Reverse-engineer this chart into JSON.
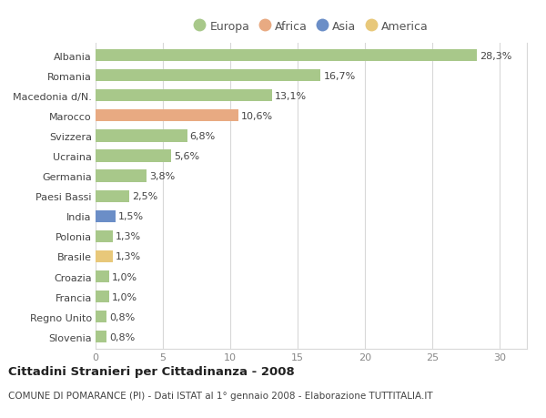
{
  "categories": [
    "Albania",
    "Romania",
    "Macedonia d/N.",
    "Marocco",
    "Svizzera",
    "Ucraina",
    "Germania",
    "Paesi Bassi",
    "India",
    "Polonia",
    "Brasile",
    "Croazia",
    "Francia",
    "Regno Unito",
    "Slovenia"
  ],
  "values": [
    28.3,
    16.7,
    13.1,
    10.6,
    6.8,
    5.6,
    3.8,
    2.5,
    1.5,
    1.3,
    1.3,
    1.0,
    1.0,
    0.8,
    0.8
  ],
  "continents": [
    "Europa",
    "Europa",
    "Europa",
    "Africa",
    "Europa",
    "Europa",
    "Europa",
    "Europa",
    "Asia",
    "Europa",
    "America",
    "Europa",
    "Europa",
    "Europa",
    "Europa"
  ],
  "colors": {
    "Europa": "#a8c88a",
    "Africa": "#e8aa82",
    "Asia": "#6b8ec7",
    "America": "#e8c87a"
  },
  "legend_order": [
    "Europa",
    "Africa",
    "Asia",
    "America"
  ],
  "title": "Cittadini Stranieri per Cittadinanza - 2008",
  "subtitle": "COMUNE DI POMARANCE (PI) - Dati ISTAT al 1° gennaio 2008 - Elaborazione TUTTITALIA.IT",
  "xlim": [
    0,
    32
  ],
  "xticks": [
    0,
    5,
    10,
    15,
    20,
    25,
    30
  ],
  "background_color": "#ffffff",
  "grid_color": "#d8d8d8",
  "bar_height": 0.6,
  "label_fontsize": 8,
  "tick_fontsize": 8,
  "title_fontsize": 9.5,
  "subtitle_fontsize": 7.5
}
